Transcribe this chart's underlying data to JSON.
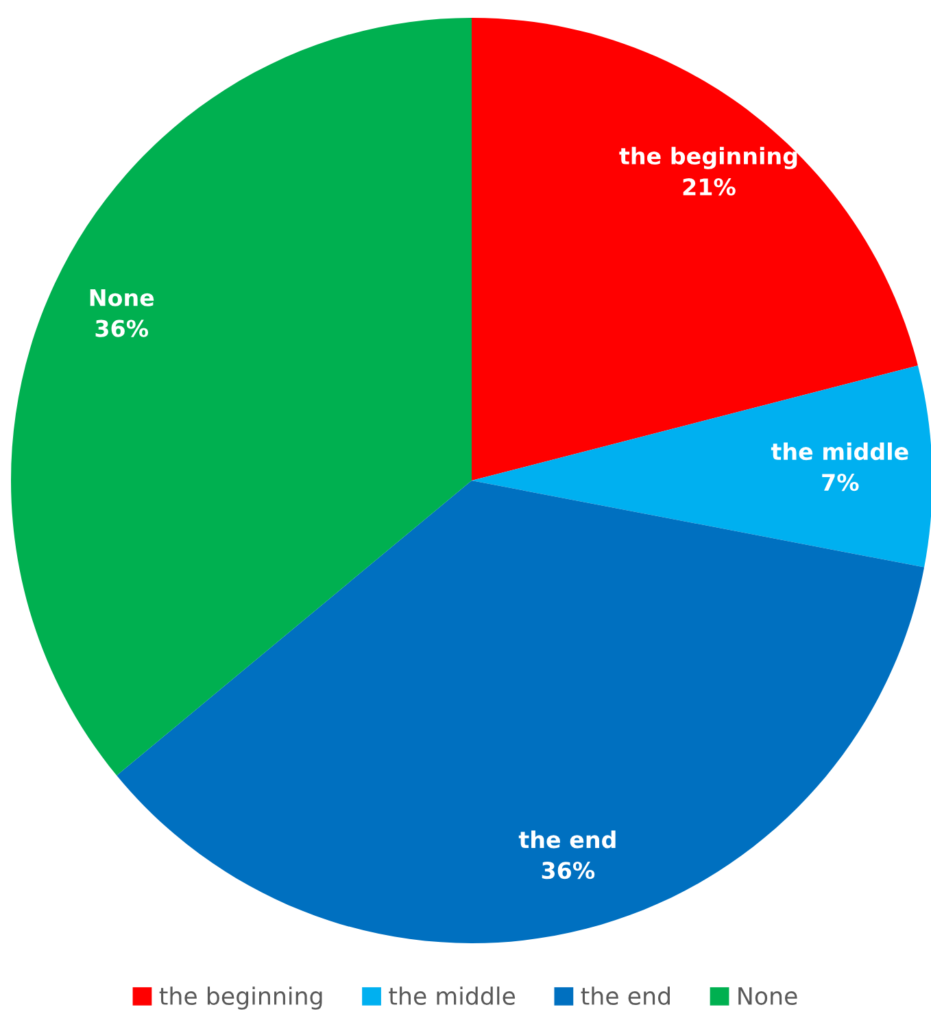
{
  "chart_data": {
    "type": "pie",
    "categories": [
      "the beginning",
      "the middle",
      "the end",
      "None"
    ],
    "values": [
      21,
      7,
      36,
      36
    ],
    "value_labels": [
      "21%",
      "7%",
      "36%",
      "36%"
    ],
    "colors": [
      "#ff0000",
      "#00b0f0",
      "#0070c0",
      "#00b050"
    ],
    "legend": "bottom"
  }
}
